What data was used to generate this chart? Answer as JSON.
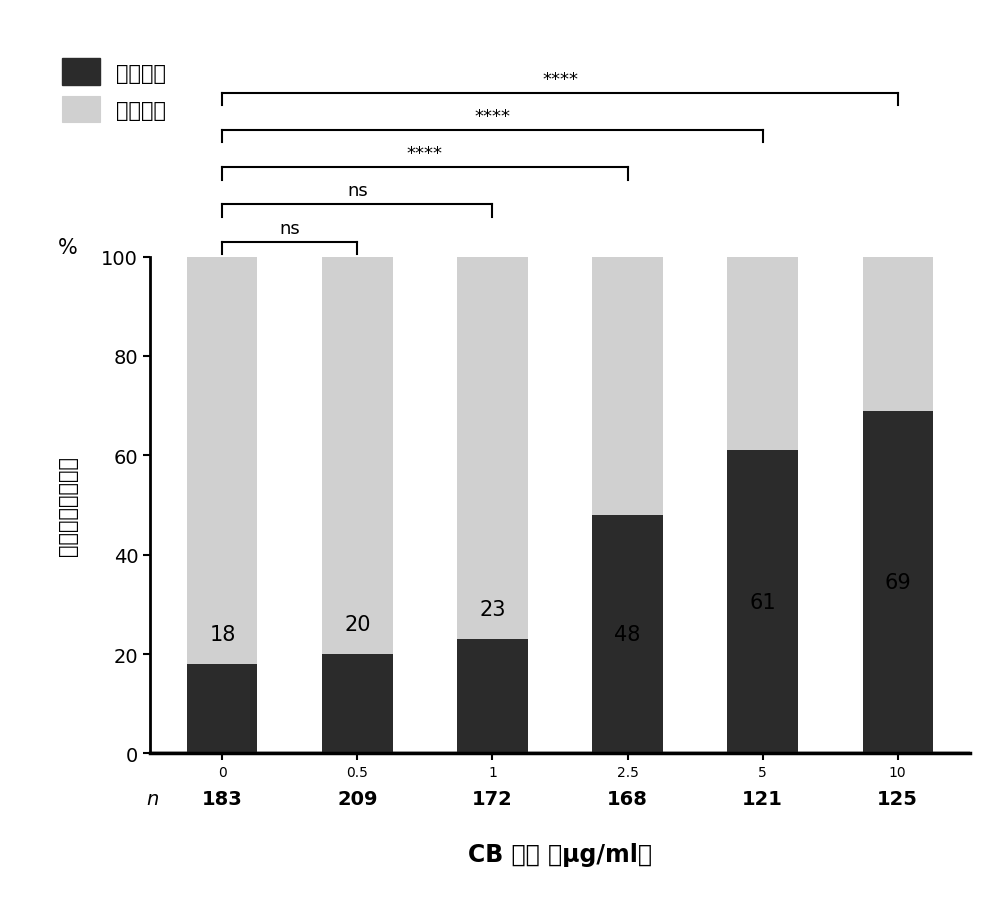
{
  "categories": [
    "0",
    "0.5",
    "1",
    "2.5",
    "5",
    "10"
  ],
  "clustered_pct": [
    18,
    20,
    23,
    48,
    61,
    69
  ],
  "dispersed_pct": [
    82,
    80,
    77,
    52,
    39,
    31
  ],
  "n_values": [
    "183",
    "209",
    "172",
    "168",
    "121",
    "125"
  ],
  "bar_color_clustered": "#2b2b2b",
  "bar_color_dispersed": "#d0d0d0",
  "bar_width": 0.52,
  "ylabel": "聚集线粒体百分比",
  "ylabel_pct": "%",
  "xlabel": "CB 浓度 （μg/ml）",
  "legend_clustered": "聚集模式",
  "legend_dispersed": "分散模式",
  "yticks": [
    0,
    20,
    40,
    60,
    80,
    100
  ],
  "bracket_params": [
    [
      0,
      1,
      "ns"
    ],
    [
      0,
      2,
      "ns"
    ],
    [
      0,
      3,
      "****"
    ],
    [
      0,
      4,
      "****"
    ],
    [
      0,
      5,
      "****"
    ]
  ],
  "background_color": "#ffffff",
  "figsize": [
    10,
    9.2
  ],
  "dpi": 100
}
